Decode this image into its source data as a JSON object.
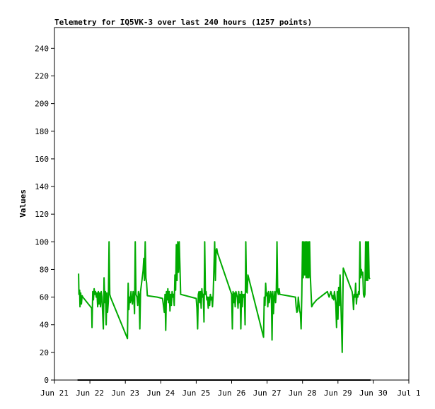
{
  "chart_data": {
    "type": "line",
    "title": "Telemetry for IQ5VK-3 over last 240 hours (1257 points)",
    "xlabel": "",
    "ylabel": "Values",
    "x_tick_labels": [
      "Jun 21",
      "Jun 22",
      "Jun 23",
      "Jun 24",
      "Jun 25",
      "Jun 26",
      "Jun 27",
      "Jun 28",
      "Jun 29",
      "Jun 30",
      "Jul 1"
    ],
    "xlim": [
      0,
      10
    ],
    "y_ticks": [
      0,
      20,
      40,
      60,
      80,
      100,
      120,
      140,
      160,
      180,
      200,
      220,
      240
    ],
    "ylim": [
      0,
      255
    ],
    "grid": false,
    "series": [
      {
        "color": "#00aa00",
        "points": [
          [
            0.68,
            77
          ],
          [
            0.69,
            62
          ],
          [
            0.71,
            65
          ],
          [
            0.72,
            53
          ],
          [
            0.74,
            63
          ],
          [
            0.76,
            55
          ],
          [
            0.78,
            61
          ],
          [
            0.8,
            60
          ],
          [
            1.05,
            52
          ],
          [
            1.06,
            38
          ],
          [
            1.08,
            64
          ],
          [
            1.1,
            58
          ],
          [
            1.12,
            66
          ],
          [
            1.14,
            62
          ],
          [
            1.16,
            64
          ],
          [
            1.18,
            60
          ],
          [
            1.2,
            63
          ],
          [
            1.22,
            53
          ],
          [
            1.24,
            64
          ],
          [
            1.26,
            55
          ],
          [
            1.28,
            63
          ],
          [
            1.3,
            53
          ],
          [
            1.32,
            64
          ],
          [
            1.34,
            60
          ],
          [
            1.38,
            37
          ],
          [
            1.4,
            74
          ],
          [
            1.42,
            56
          ],
          [
            1.44,
            64
          ],
          [
            1.46,
            40
          ],
          [
            1.48,
            63
          ],
          [
            1.5,
            49
          ],
          [
            1.52,
            57
          ],
          [
            1.54,
            100
          ],
          [
            1.56,
            62
          ],
          [
            1.58,
            60
          ],
          [
            2.06,
            30
          ],
          [
            2.08,
            70
          ],
          [
            2.1,
            51
          ],
          [
            2.12,
            60
          ],
          [
            2.14,
            56
          ],
          [
            2.16,
            64
          ],
          [
            2.18,
            58
          ],
          [
            2.2,
            55
          ],
          [
            2.22,
            64
          ],
          [
            2.24,
            60
          ],
          [
            2.26,
            48
          ],
          [
            2.28,
            100
          ],
          [
            2.3,
            62
          ],
          [
            2.33,
            60
          ],
          [
            2.35,
            54
          ],
          [
            2.37,
            64
          ],
          [
            2.39,
            62
          ],
          [
            2.41,
            37
          ],
          [
            2.43,
            64
          ],
          [
            2.5,
            79
          ],
          [
            2.52,
            88
          ],
          [
            2.54,
            72
          ],
          [
            2.56,
            100
          ],
          [
            2.58,
            74
          ],
          [
            2.6,
            70
          ],
          [
            2.62,
            61
          ],
          [
            2.9,
            60
          ],
          [
            3.05,
            59
          ],
          [
            3.1,
            49
          ],
          [
            3.12,
            62
          ],
          [
            3.14,
            36
          ],
          [
            3.16,
            64
          ],
          [
            3.18,
            58
          ],
          [
            3.2,
            66
          ],
          [
            3.22,
            56
          ],
          [
            3.24,
            64
          ],
          [
            3.26,
            50
          ],
          [
            3.28,
            62
          ],
          [
            3.3,
            54
          ],
          [
            3.32,
            64
          ],
          [
            3.34,
            60
          ],
          [
            3.36,
            62
          ],
          [
            3.38,
            54
          ],
          [
            3.4,
            76
          ],
          [
            3.42,
            65
          ],
          [
            3.44,
            98
          ],
          [
            3.46,
            72
          ],
          [
            3.48,
            100
          ],
          [
            3.5,
            78
          ],
          [
            3.52,
            100
          ],
          [
            3.54,
            82
          ],
          [
            3.56,
            62
          ],
          [
            4.0,
            59
          ],
          [
            4.02,
            52
          ],
          [
            4.04,
            37
          ],
          [
            4.06,
            62
          ],
          [
            4.08,
            64
          ],
          [
            4.1,
            56
          ],
          [
            4.12,
            64
          ],
          [
            4.14,
            52
          ],
          [
            4.16,
            66
          ],
          [
            4.18,
            60
          ],
          [
            4.2,
            62
          ],
          [
            4.22,
            42
          ],
          [
            4.24,
            100
          ],
          [
            4.26,
            62
          ],
          [
            4.28,
            64
          ],
          [
            4.3,
            58
          ],
          [
            4.32,
            60
          ],
          [
            4.34,
            52
          ],
          [
            4.36,
            60
          ],
          [
            4.38,
            54
          ],
          [
            4.4,
            62
          ],
          [
            4.42,
            58
          ],
          [
            4.44,
            60
          ],
          [
            4.46,
            53
          ],
          [
            4.48,
            62
          ],
          [
            4.52,
            100
          ],
          [
            4.54,
            72
          ],
          [
            4.56,
            94
          ],
          [
            4.58,
            95
          ],
          [
            4.6,
            92
          ],
          [
            5.0,
            62
          ],
          [
            5.02,
            37
          ],
          [
            5.04,
            64
          ],
          [
            5.06,
            56
          ],
          [
            5.08,
            63
          ],
          [
            5.1,
            53
          ],
          [
            5.12,
            64
          ],
          [
            5.14,
            62
          ],
          [
            5.16,
            60
          ],
          [
            5.18,
            52
          ],
          [
            5.2,
            64
          ],
          [
            5.22,
            56
          ],
          [
            5.24,
            62
          ],
          [
            5.26,
            37
          ],
          [
            5.28,
            64
          ],
          [
            5.3,
            53
          ],
          [
            5.32,
            62
          ],
          [
            5.34,
            60
          ],
          [
            5.36,
            62
          ],
          [
            5.38,
            40
          ],
          [
            5.4,
            100
          ],
          [
            5.42,
            64
          ],
          [
            5.44,
            63
          ],
          [
            5.46,
            76
          ],
          [
            5.9,
            31
          ],
          [
            5.92,
            60
          ],
          [
            5.94,
            54
          ],
          [
            5.96,
            70
          ],
          [
            5.98,
            61
          ],
          [
            6.0,
            63
          ],
          [
            6.02,
            53
          ],
          [
            6.04,
            64
          ],
          [
            6.06,
            56
          ],
          [
            6.08,
            60
          ],
          [
            6.1,
            64
          ],
          [
            6.12,
            62
          ],
          [
            6.14,
            29
          ],
          [
            6.16,
            64
          ],
          [
            6.18,
            48
          ],
          [
            6.2,
            60
          ],
          [
            6.22,
            64
          ],
          [
            6.24,
            56
          ],
          [
            6.26,
            64
          ],
          [
            6.28,
            100
          ],
          [
            6.3,
            64
          ],
          [
            6.32,
            62
          ],
          [
            6.34,
            66
          ],
          [
            6.36,
            62
          ],
          [
            6.8,
            60
          ],
          [
            6.82,
            53
          ],
          [
            6.84,
            49
          ],
          [
            6.86,
            50
          ],
          [
            6.88,
            60
          ],
          [
            6.9,
            55
          ],
          [
            6.92,
            50
          ],
          [
            6.94,
            48
          ],
          [
            6.96,
            37
          ],
          [
            6.98,
            62
          ],
          [
            7.0,
            100
          ],
          [
            7.02,
            74
          ],
          [
            7.04,
            100
          ],
          [
            7.06,
            76
          ],
          [
            7.08,
            100
          ],
          [
            7.1,
            74
          ],
          [
            7.12,
            100
          ],
          [
            7.14,
            74
          ],
          [
            7.16,
            100
          ],
          [
            7.18,
            74
          ],
          [
            7.2,
            100
          ],
          [
            7.22,
            76
          ],
          [
            7.24,
            64
          ],
          [
            7.26,
            53
          ],
          [
            7.3,
            55
          ],
          [
            7.4,
            58
          ],
          [
            7.5,
            60
          ],
          [
            7.6,
            62
          ],
          [
            7.7,
            64
          ],
          [
            7.75,
            60
          ],
          [
            7.8,
            64
          ],
          [
            7.82,
            62
          ],
          [
            7.84,
            59
          ],
          [
            7.86,
            61
          ],
          [
            7.88,
            58
          ],
          [
            7.9,
            64
          ],
          [
            7.92,
            60
          ],
          [
            7.94,
            54
          ],
          [
            7.96,
            38
          ],
          [
            7.98,
            64
          ],
          [
            8.0,
            44
          ],
          [
            8.02,
            67
          ],
          [
            8.04,
            54
          ],
          [
            8.06,
            76
          ],
          [
            8.08,
            58
          ],
          [
            8.1,
            40
          ],
          [
            8.12,
            20
          ],
          [
            8.15,
            81
          ],
          [
            8.4,
            64
          ],
          [
            8.42,
            60
          ],
          [
            8.44,
            51
          ],
          [
            8.46,
            62
          ],
          [
            8.48,
            60
          ],
          [
            8.5,
            70
          ],
          [
            8.52,
            55
          ],
          [
            8.54,
            62
          ],
          [
            8.56,
            60
          ],
          [
            8.58,
            64
          ],
          [
            8.6,
            62
          ],
          [
            8.62,
            100
          ],
          [
            8.64,
            74
          ],
          [
            8.66,
            80
          ],
          [
            8.68,
            76
          ],
          [
            8.7,
            78
          ],
          [
            8.72,
            62
          ],
          [
            8.74,
            60
          ],
          [
            8.76,
            62
          ],
          [
            8.78,
            100
          ],
          [
            8.8,
            72
          ],
          [
            8.82,
            100
          ],
          [
            8.84,
            72
          ],
          [
            8.86,
            100
          ],
          [
            8.88,
            74
          ],
          [
            8.9,
            73
          ]
        ]
      },
      {
        "color": "#000000",
        "points": [
          [
            0.65,
            0
          ],
          [
            8.92,
            0
          ]
        ]
      }
    ]
  }
}
